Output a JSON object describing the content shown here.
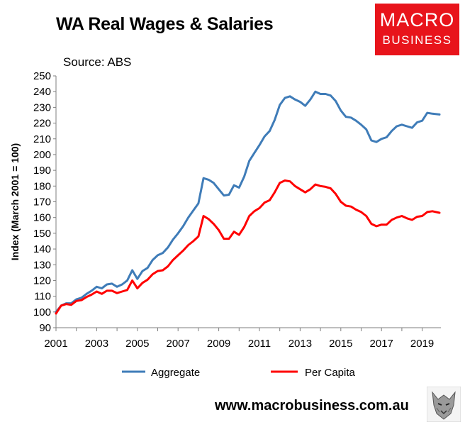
{
  "title": "WA Real Wages & Salaries",
  "logo": {
    "line1": "MACRO",
    "line2": "BUSINESS"
  },
  "source": "Source: ABS",
  "footer": "www.macrobusiness.com.au",
  "colors": {
    "aggregate": "#3f7cb8",
    "per_capita": "#ff0000",
    "logo_bg": "#e8141b"
  },
  "chart_data": {
    "type": "line",
    "title": "WA Real Wages & Salaries",
    "ylabel": "Index (March 2001 = 100)",
    "xlabel": "",
    "ylim": [
      90,
      250
    ],
    "yticks": [
      90,
      100,
      110,
      120,
      130,
      140,
      150,
      160,
      170,
      180,
      190,
      200,
      210,
      220,
      230,
      240,
      250
    ],
    "xlim": [
      2001,
      2019.85
    ],
    "xticks": [
      2001,
      2003,
      2005,
      2007,
      2009,
      2011,
      2013,
      2015,
      2017,
      2019
    ],
    "legend": "bottom",
    "grid": false,
    "series": [
      {
        "name": "Aggregate",
        "color": "#3f7cb8",
        "points": [
          [
            2001.0,
            100
          ],
          [
            2001.25,
            104
          ],
          [
            2001.5,
            105.5
          ],
          [
            2001.75,
            105.5
          ],
          [
            2002.0,
            108
          ],
          [
            2002.25,
            109
          ],
          [
            2002.5,
            111.5
          ],
          [
            2002.75,
            113.5
          ],
          [
            2003.0,
            116
          ],
          [
            2003.25,
            115
          ],
          [
            2003.5,
            117.5
          ],
          [
            2003.75,
            118
          ],
          [
            2004.0,
            116
          ],
          [
            2004.25,
            117.5
          ],
          [
            2004.5,
            120
          ],
          [
            2004.75,
            126.5
          ],
          [
            2005.0,
            121
          ],
          [
            2005.25,
            126
          ],
          [
            2005.5,
            128
          ],
          [
            2005.75,
            133
          ],
          [
            2006.0,
            136
          ],
          [
            2006.25,
            137.5
          ],
          [
            2006.5,
            141
          ],
          [
            2006.75,
            146
          ],
          [
            2007.0,
            150
          ],
          [
            2007.25,
            154.5
          ],
          [
            2007.5,
            160
          ],
          [
            2007.75,
            164.5
          ],
          [
            2008.0,
            169
          ],
          [
            2008.25,
            185
          ],
          [
            2008.5,
            184
          ],
          [
            2008.75,
            182
          ],
          [
            2009.0,
            178
          ],
          [
            2009.25,
            174
          ],
          [
            2009.5,
            174.5
          ],
          [
            2009.75,
            180.5
          ],
          [
            2010.0,
            179
          ],
          [
            2010.25,
            186
          ],
          [
            2010.5,
            196
          ],
          [
            2010.75,
            201
          ],
          [
            2011.0,
            206
          ],
          [
            2011.25,
            211.5
          ],
          [
            2011.5,
            215
          ],
          [
            2011.75,
            222
          ],
          [
            2012.0,
            231.5
          ],
          [
            2012.25,
            236
          ],
          [
            2012.5,
            237
          ],
          [
            2012.75,
            235
          ],
          [
            2013.0,
            233.5
          ],
          [
            2013.25,
            231
          ],
          [
            2013.5,
            235
          ],
          [
            2013.75,
            240
          ],
          [
            2014.0,
            238.5
          ],
          [
            2014.25,
            238.5
          ],
          [
            2014.5,
            237.5
          ],
          [
            2014.75,
            234
          ],
          [
            2015.0,
            228
          ],
          [
            2015.25,
            224
          ],
          [
            2015.5,
            223.5
          ],
          [
            2015.75,
            221.5
          ],
          [
            2016.0,
            219
          ],
          [
            2016.25,
            216
          ],
          [
            2016.5,
            209
          ],
          [
            2016.75,
            208
          ],
          [
            2017.0,
            210
          ],
          [
            2017.25,
            211
          ],
          [
            2017.5,
            215
          ],
          [
            2017.75,
            218
          ],
          [
            2018.0,
            219
          ],
          [
            2018.25,
            218
          ],
          [
            2018.5,
            217
          ],
          [
            2018.75,
            220.5
          ],
          [
            2019.0,
            221.5
          ],
          [
            2019.25,
            226.5
          ],
          [
            2019.5,
            226
          ],
          [
            2019.85,
            225.5
          ]
        ]
      },
      {
        "name": "Per Capita",
        "color": "#ff0000",
        "points": [
          [
            2001.0,
            99
          ],
          [
            2001.25,
            104
          ],
          [
            2001.5,
            105
          ],
          [
            2001.75,
            104.5
          ],
          [
            2002.0,
            107
          ],
          [
            2002.25,
            107.5
          ],
          [
            2002.5,
            109.5
          ],
          [
            2002.75,
            111
          ],
          [
            2003.0,
            113
          ],
          [
            2003.25,
            111.5
          ],
          [
            2003.5,
            113.5
          ],
          [
            2003.75,
            113.5
          ],
          [
            2004.0,
            112
          ],
          [
            2004.25,
            113
          ],
          [
            2004.5,
            114
          ],
          [
            2004.75,
            120
          ],
          [
            2005.0,
            115
          ],
          [
            2005.25,
            118.5
          ],
          [
            2005.5,
            120.5
          ],
          [
            2005.75,
            124
          ],
          [
            2006.0,
            126
          ],
          [
            2006.25,
            126.5
          ],
          [
            2006.5,
            129
          ],
          [
            2006.75,
            133
          ],
          [
            2007.0,
            136
          ],
          [
            2007.25,
            139
          ],
          [
            2007.5,
            142.5
          ],
          [
            2007.75,
            145
          ],
          [
            2008.0,
            148
          ],
          [
            2008.25,
            161
          ],
          [
            2008.5,
            159
          ],
          [
            2008.75,
            156
          ],
          [
            2009.0,
            152
          ],
          [
            2009.25,
            146.5
          ],
          [
            2009.5,
            146.5
          ],
          [
            2009.75,
            151
          ],
          [
            2010.0,
            149
          ],
          [
            2010.25,
            154
          ],
          [
            2010.5,
            161
          ],
          [
            2010.75,
            164
          ],
          [
            2011.0,
            166
          ],
          [
            2011.25,
            169.5
          ],
          [
            2011.5,
            171
          ],
          [
            2011.75,
            176
          ],
          [
            2012.0,
            182
          ],
          [
            2012.25,
            183.5
          ],
          [
            2012.5,
            183
          ],
          [
            2012.75,
            180
          ],
          [
            2013.0,
            178
          ],
          [
            2013.25,
            176
          ],
          [
            2013.5,
            178
          ],
          [
            2013.75,
            181
          ],
          [
            2014.0,
            180
          ],
          [
            2014.25,
            179.5
          ],
          [
            2014.5,
            178.5
          ],
          [
            2014.75,
            175
          ],
          [
            2015.0,
            170
          ],
          [
            2015.25,
            167.5
          ],
          [
            2015.5,
            167
          ],
          [
            2015.75,
            165
          ],
          [
            2016.0,
            163.5
          ],
          [
            2016.25,
            161
          ],
          [
            2016.5,
            156
          ],
          [
            2016.75,
            154.5
          ],
          [
            2017.0,
            155.5
          ],
          [
            2017.25,
            155.5
          ],
          [
            2017.5,
            158.5
          ],
          [
            2017.75,
            160
          ],
          [
            2018.0,
            161
          ],
          [
            2018.25,
            159.5
          ],
          [
            2018.5,
            158.5
          ],
          [
            2018.75,
            160.5
          ],
          [
            2019.0,
            161
          ],
          [
            2019.25,
            163.5
          ],
          [
            2019.5,
            164
          ],
          [
            2019.85,
            163
          ]
        ]
      }
    ]
  }
}
